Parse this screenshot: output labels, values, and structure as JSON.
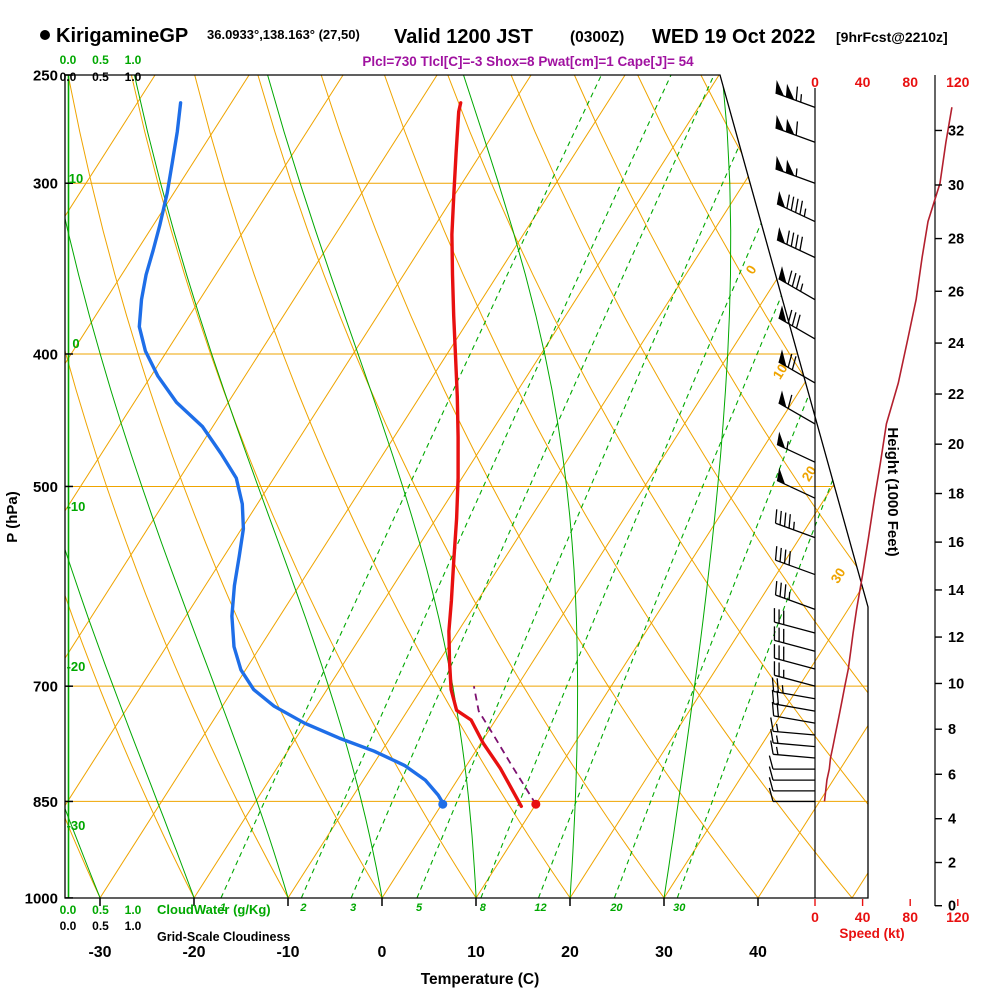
{
  "header": {
    "station": "KirigamineGP",
    "coords": "36.0933°,138.163° (27,50)",
    "valid_main": "Valid 1200 JST",
    "valid_z": "(0300Z)",
    "valid_date": "WED 19 Oct 2022",
    "fcst": "[9hrFcst@2210z]",
    "indices": "Plcl=730 Tlcl[C]=-3 Shox=8 Pwat[cm]=1 Cape[J]= 54"
  },
  "axes": {
    "pressure_label": "P (hPa)",
    "pressure_ticks": [
      250,
      300,
      400,
      500,
      700,
      850,
      1000
    ],
    "temp_label": "Temperature (C)",
    "temp_ticks": [
      -30,
      -20,
      -10,
      0,
      10,
      20,
      30,
      40
    ],
    "height_label": "Height (1000 Feet)",
    "height_ticks": [
      0,
      2,
      4,
      6,
      8,
      10,
      12,
      14,
      16,
      18,
      20,
      22,
      24,
      26,
      28,
      30,
      32
    ],
    "speed_label": "Speed (kt)",
    "speed_ticks": [
      0,
      40,
      80,
      120
    ],
    "cloud_ticks": [
      "0.0",
      "0.5",
      "1.0"
    ],
    "cloudwater_label": "CloudWater (g/Kg)",
    "cloudiness_label": "Grid-Scale Cloudiness"
  },
  "grid_lines": {
    "pressure_gridlines": [
      300,
      400,
      500,
      700,
      850
    ],
    "isotherms_c": [
      -90,
      -80,
      -70,
      -60,
      -50,
      -40,
      -30,
      -20,
      -10,
      0,
      10,
      20,
      30,
      40,
      50
    ],
    "dry_adiabats_c": [
      -40,
      -30,
      -20,
      -10,
      0,
      10,
      20,
      30,
      40,
      50,
      60,
      70,
      80,
      90,
      100,
      110,
      120
    ],
    "moist_adiabats_c": [
      -60,
      -50,
      -40,
      -30,
      -20,
      -10,
      0,
      10,
      20,
      30
    ],
    "mixing_ratio_gkg": [
      1,
      2,
      3,
      5,
      8,
      12,
      20,
      30
    ],
    "isotherm_diag_labels": [
      "0",
      "10",
      "20",
      "30"
    ],
    "moist_left_labels": [
      "10",
      "0",
      "-10",
      "-20",
      "-30"
    ]
  },
  "chart_data": {
    "type": "line",
    "chart_kind": "skew-t log-p thermodynamic sounding",
    "pressure_range_hpa": [
      250,
      1000
    ],
    "temperature_axis_c": [
      -30,
      40
    ],
    "temperature_profile_p_t": [
      [
        857,
        8.6
      ],
      [
        804,
        3.8
      ],
      [
        771,
        0.3
      ],
      [
        741,
        -2.6
      ],
      [
        729,
        -4.8
      ],
      [
        704,
        -6.8
      ],
      [
        671,
        -8.9
      ],
      [
        638,
        -11.0
      ],
      [
        606,
        -12.8
      ],
      [
        566,
        -15.3
      ],
      [
        528,
        -17.8
      ],
      [
        493,
        -20.4
      ],
      [
        460,
        -23.2
      ],
      [
        430,
        -26.0
      ],
      [
        401,
        -29.0
      ],
      [
        375,
        -31.9
      ],
      [
        350,
        -34.8
      ],
      [
        327,
        -37.6
      ],
      [
        305,
        -40.2
      ],
      [
        285,
        -42.7
      ],
      [
        266,
        -45.2
      ],
      [
        262,
        -45.6
      ]
    ],
    "dewpoint_profile_p_t": [
      [
        853,
        0.1
      ],
      [
        841,
        -1.0
      ],
      [
        820,
        -3.4
      ],
      [
        800,
        -6.6
      ],
      [
        781,
        -10.8
      ],
      [
        764,
        -15.4
      ],
      [
        745,
        -20.1
      ],
      [
        724,
        -24.5
      ],
      [
        704,
        -27.8
      ],
      [
        681,
        -30.5
      ],
      [
        655,
        -32.8
      ],
      [
        622,
        -35.1
      ],
      [
        591,
        -36.9
      ],
      [
        562,
        -38.4
      ],
      [
        537,
        -39.8
      ],
      [
        515,
        -41.6
      ],
      [
        493,
        -44.0
      ],
      [
        473,
        -47.3
      ],
      [
        452,
        -51.1
      ],
      [
        434,
        -55.5
      ],
      [
        415,
        -59.3
      ],
      [
        398,
        -62.3
      ],
      [
        382,
        -64.6
      ],
      [
        365,
        -66.2
      ],
      [
        350,
        -67.4
      ],
      [
        336,
        -68.3
      ],
      [
        322,
        -69.3
      ],
      [
        305,
        -70.7
      ],
      [
        290,
        -72.2
      ],
      [
        275,
        -73.8
      ],
      [
        262,
        -75.4
      ]
    ],
    "parcel_path_p_t": [
      [
        854,
        10.0
      ],
      [
        800,
        4.8
      ],
      [
        760,
        0.8
      ],
      [
        730,
        -2.4
      ],
      [
        700,
        -4.6
      ]
    ],
    "surface_points": {
      "temperature": {
        "p": 854,
        "t": 10.0
      },
      "dewpoint": {
        "p": 854,
        "t": 0.1
      }
    },
    "wind_profile_p_dir_kt": [
      [
        264,
        290,
        115
      ],
      [
        280,
        290,
        110
      ],
      [
        300,
        290,
        105
      ],
      [
        320,
        295,
        95
      ],
      [
        340,
        295,
        90
      ],
      [
        365,
        300,
        85
      ],
      [
        390,
        300,
        78
      ],
      [
        420,
        300,
        70
      ],
      [
        450,
        300,
        60
      ],
      [
        480,
        295,
        55
      ],
      [
        510,
        295,
        50
      ],
      [
        545,
        290,
        45
      ],
      [
        580,
        290,
        40
      ],
      [
        615,
        290,
        35
      ],
      [
        640,
        285,
        32
      ],
      [
        660,
        285,
        30
      ],
      [
        680,
        285,
        28
      ],
      [
        700,
        285,
        25
      ],
      [
        715,
        280,
        23
      ],
      [
        730,
        280,
        21
      ],
      [
        745,
        280,
        19
      ],
      [
        760,
        275,
        17
      ],
      [
        775,
        275,
        15
      ],
      [
        790,
        275,
        13
      ],
      [
        805,
        270,
        12
      ],
      [
        820,
        270,
        10
      ],
      [
        835,
        270,
        9
      ],
      [
        850,
        270,
        8
      ]
    ]
  },
  "colors": {
    "grid_orange": "#efa400",
    "green": "#00a800",
    "temp_red": "#e81010",
    "dewpoint_blue": "#1e6ee8",
    "speed_profile": "#b3202e",
    "speed_red": "#e81010",
    "parcel_purple": "#7d1070",
    "indices_magenta": "#a012a0",
    "black": "#000000"
  }
}
